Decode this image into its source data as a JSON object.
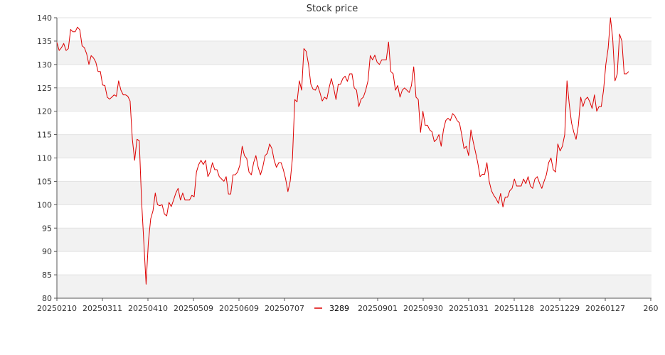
{
  "chart_data": {
    "type": "line",
    "title": "Stock price",
    "xlabel": "",
    "ylabel": "",
    "ylim": [
      80,
      140
    ],
    "yticks": [
      80,
      85,
      90,
      95,
      100,
      105,
      110,
      115,
      120,
      125,
      130,
      135,
      140
    ],
    "xticks": [
      "20250210",
      "20250311",
      "20250410",
      "20250509",
      "20250609",
      "20250707",
      "20250901",
      "20250930",
      "20251031",
      "20251128",
      "20251229",
      "20260127",
      "260"
    ],
    "grid": true,
    "legend_position": "bottom-center",
    "series": [
      {
        "name": "3289",
        "color": "#dd0000",
        "values": [
          134.7,
          133.0,
          133.6,
          134.5,
          133.0,
          133.4,
          137.5,
          137.0,
          137.0,
          138.0,
          137.4,
          134.0,
          133.6,
          132.3,
          130.0,
          131.9,
          131.4,
          130.5,
          128.5,
          128.5,
          125.6,
          125.5,
          123.0,
          122.6,
          123.0,
          123.5,
          123.2,
          126.5,
          124.5,
          123.5,
          123.5,
          123.2,
          122.2,
          114.0,
          109.5,
          114.0,
          113.7,
          101.0,
          92.0,
          83.0,
          92.0,
          97.0,
          98.7,
          102.5,
          100.0,
          99.8,
          100.0,
          98.0,
          97.6,
          100.5,
          99.6,
          101.0,
          102.5,
          103.5,
          101.0,
          102.5,
          101.0,
          101.0,
          101.0,
          102.0,
          101.7,
          107.0,
          108.6,
          109.5,
          108.6,
          109.5,
          106.0,
          107.0,
          109.0,
          107.5,
          107.5,
          106.0,
          105.5,
          105.0,
          106.0,
          102.3,
          102.3,
          106.4,
          106.4,
          107.0,
          108.5,
          112.5,
          110.5,
          109.9,
          107.0,
          106.4,
          109.0,
          110.5,
          108.0,
          106.4,
          108.0,
          110.5,
          111.0,
          113.0,
          112.0,
          109.5,
          108.0,
          109.0,
          109.0,
          107.5,
          105.5,
          102.8,
          105.0,
          110.0,
          122.5,
          122.0,
          126.5,
          124.5,
          133.4,
          132.8,
          130.0,
          125.8,
          124.7,
          124.5,
          125.5,
          124.0,
          122.2,
          123.0,
          122.6,
          125.0,
          127.0,
          125.0,
          122.5,
          125.8,
          125.8,
          127.0,
          127.5,
          126.4,
          128.0,
          128.0,
          125.0,
          124.5,
          121.0,
          122.6,
          123.0,
          124.5,
          126.5,
          131.9,
          131.0,
          132.0,
          130.5,
          130.0,
          131.0,
          131.0,
          131.0,
          134.8,
          128.5,
          128.0,
          124.5,
          125.5,
          123.0,
          124.5,
          125.0,
          124.5,
          124.0,
          125.5,
          129.5,
          123.0,
          122.5,
          115.5,
          120.0,
          117.0,
          117.0,
          116.0,
          115.6,
          113.5,
          114.0,
          115.0,
          112.5,
          116.0,
          118.0,
          118.5,
          118.0,
          119.5,
          119.0,
          118.0,
          117.5,
          115.0,
          112.0,
          112.5,
          110.5,
          116.0,
          113.5,
          111.3,
          109.0,
          106.0,
          106.5,
          106.5,
          109.0,
          105.0,
          103.0,
          102.0,
          101.3,
          100.3,
          102.4,
          99.5,
          101.6,
          101.6,
          103.0,
          103.5,
          105.5,
          104.0,
          104.0,
          104.0,
          105.5,
          104.5,
          106.0,
          104.0,
          103.5,
          105.5,
          106.0,
          104.6,
          103.5,
          105.0,
          106.4,
          109.0,
          110.0,
          107.5,
          107.0,
          113.0,
          111.5,
          112.5,
          115.0,
          126.5,
          121.5,
          117.5,
          115.5,
          114.0,
          117.0,
          123.0,
          121.0,
          122.5,
          123.0,
          122.0,
          120.6,
          123.5,
          120.0,
          121.0,
          121.0,
          124.5,
          130.0,
          133.5,
          140.0,
          135.5,
          126.5,
          128.0,
          136.5,
          135.0,
          128.0,
          128.0,
          128.5
        ]
      }
    ]
  }
}
